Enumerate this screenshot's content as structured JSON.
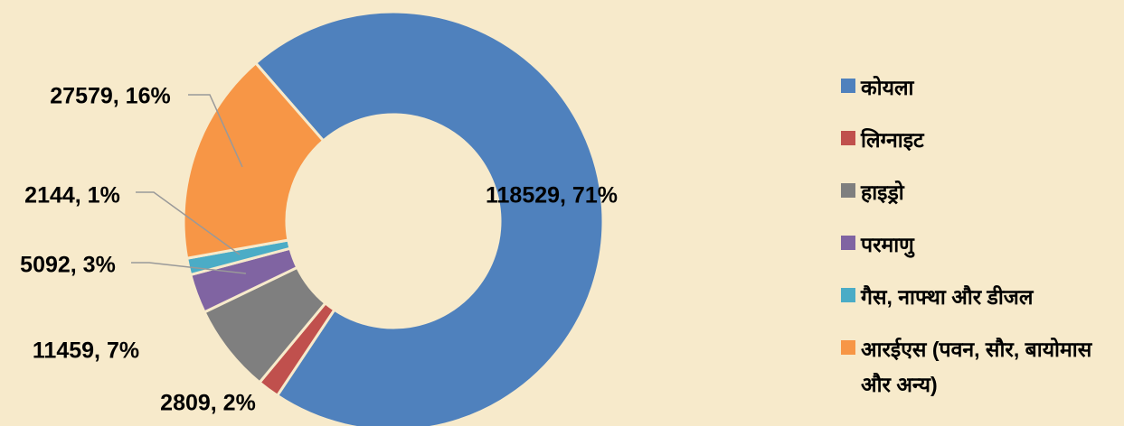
{
  "chart_data": {
    "type": "pie",
    "donut": true,
    "categories": [
      "कोयला",
      "लिग्नाइट",
      "हाइड्रो",
      "परमाणु",
      "गैस, नाफ्था और डीजल",
      "आरईएस (पवन, सौर, बायोमास और अन्य)"
    ],
    "values": [
      118529,
      2809,
      11459,
      5092,
      2144,
      27579
    ],
    "value_labels": [
      "118529, 71%",
      "2809, 2%",
      "11459, 7%",
      "5092, 3%",
      "2144, 1%",
      "27579, 16%"
    ],
    "colors": [
      "#4f81bd",
      "#c0504d",
      "#7f7f7f",
      "#8064a2",
      "#4bacc6",
      "#f79646"
    ],
    "legend": "right"
  }
}
